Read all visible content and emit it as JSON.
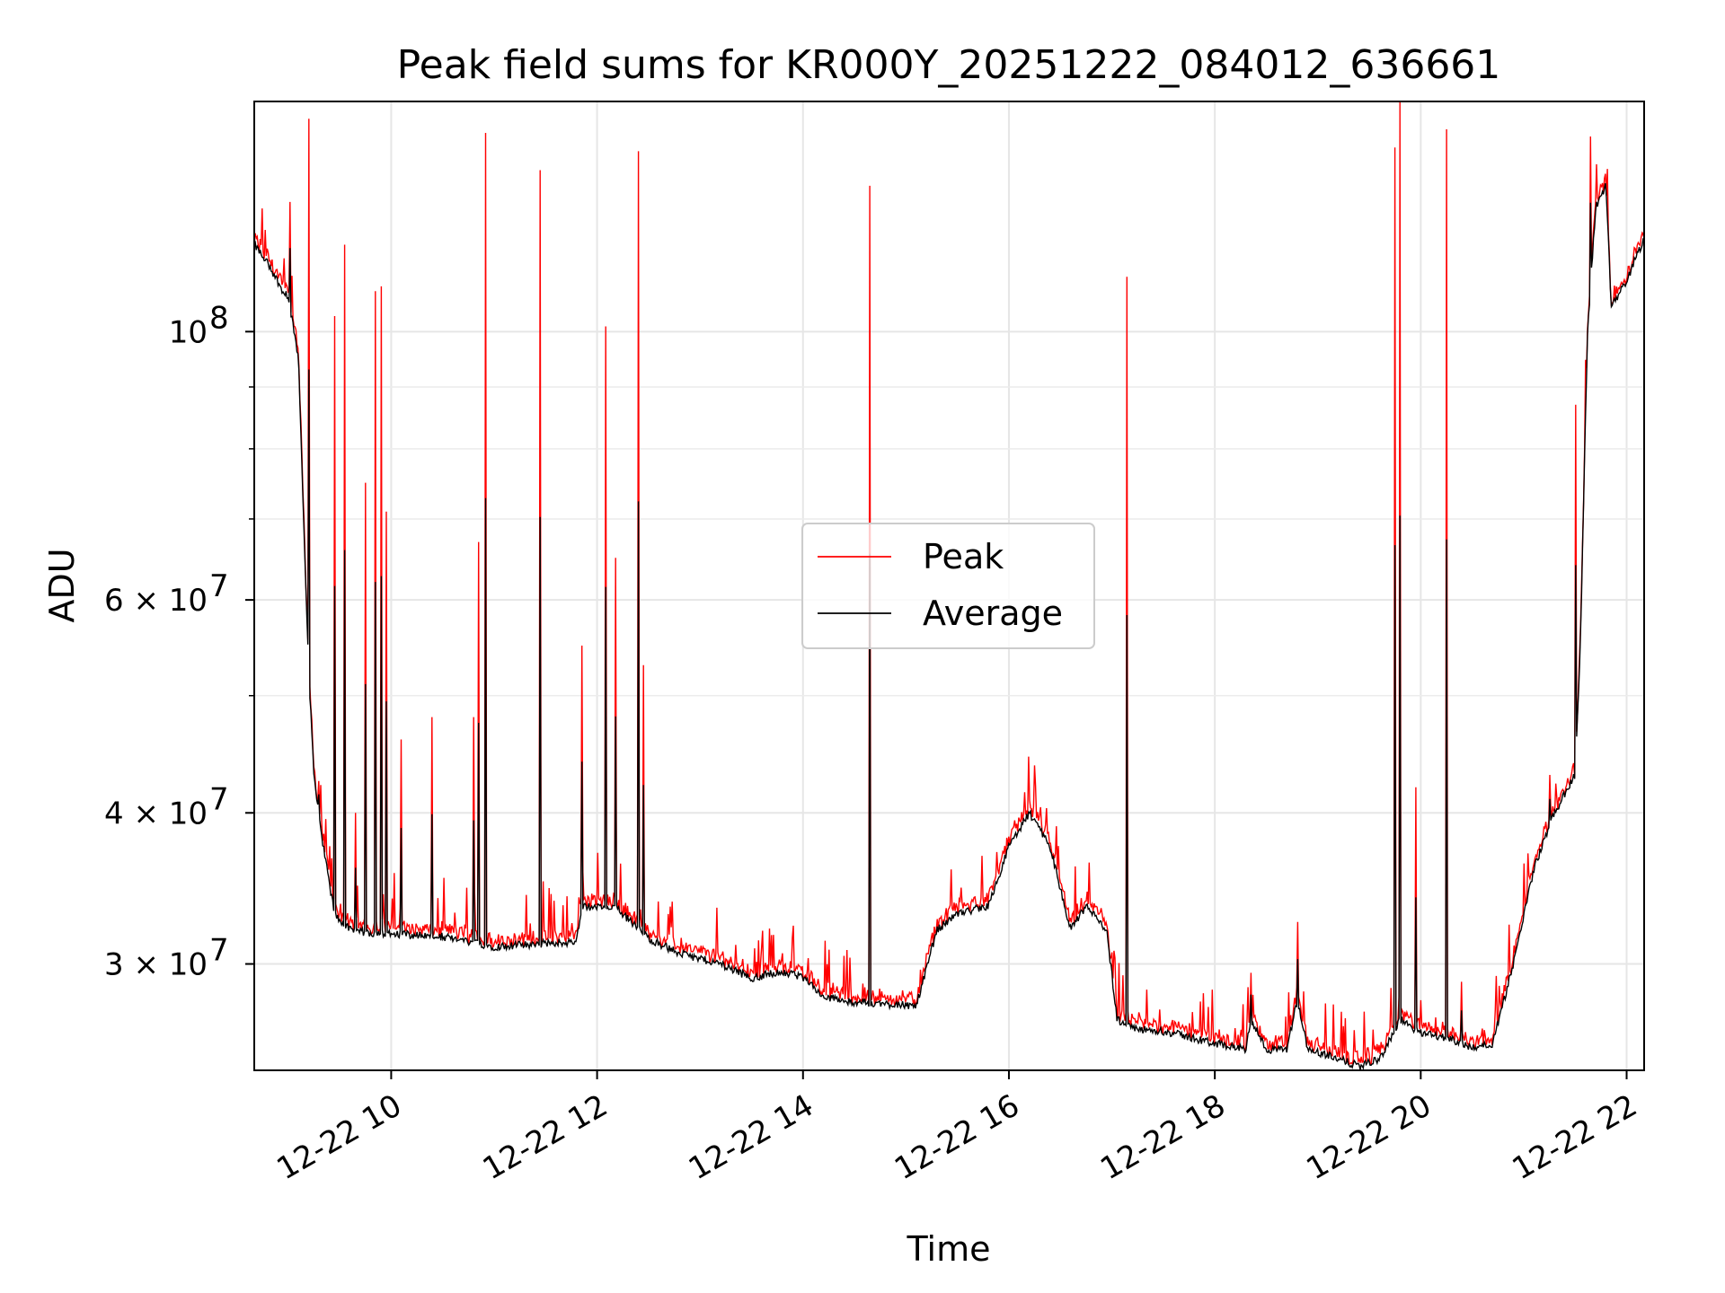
{
  "chart_data": {
    "type": "line",
    "title": "Peak field sums for KR000Y_20251222_084012_636661",
    "xlabel": "Time",
    "ylabel": "ADU",
    "yscale": "log",
    "grid": true,
    "legend_position": "center",
    "xlim_hours": [
      8.67,
      22.17
    ],
    "ylim": [
      24500000,
      155000000
    ],
    "x_ticks": [
      {
        "value": 10,
        "label": "12-22 10"
      },
      {
        "value": 12,
        "label": "12-22 12"
      },
      {
        "value": 14,
        "label": "12-22 14"
      },
      {
        "value": 16,
        "label": "12-22 16"
      },
      {
        "value": 18,
        "label": "12-22 18"
      },
      {
        "value": 20,
        "label": "12-22 20"
      },
      {
        "value": 22,
        "label": "12-22 22"
      }
    ],
    "y_major_ticks": [
      {
        "value": 30000000,
        "label": "3 × 10",
        "exp": "7"
      },
      {
        "value": 40000000,
        "label": "4 × 10",
        "exp": "7"
      },
      {
        "value": 60000000,
        "label": "6 × 10",
        "exp": "7"
      },
      {
        "value": 100000000,
        "label": "10",
        "exp": "8"
      }
    ],
    "y_minor_ticks": [
      50000000,
      70000000,
      80000000,
      90000000
    ],
    "baseline": [
      [
        8.67,
        118000000
      ],
      [
        8.8,
        114000000
      ],
      [
        8.95,
        108000000
      ],
      [
        9.0,
        107000000
      ],
      [
        9.1,
        95000000
      ],
      [
        9.15,
        70000000
      ],
      [
        9.2,
        52000000
      ],
      [
        9.25,
        43000000
      ],
      [
        9.35,
        37000000
      ],
      [
        9.45,
        33000000
      ],
      [
        9.6,
        32000000
      ],
      [
        9.8,
        31800000
      ],
      [
        10.0,
        31800000
      ],
      [
        10.5,
        31600000
      ],
      [
        11.0,
        31000000
      ],
      [
        11.5,
        31200000
      ],
      [
        11.8,
        31300000
      ],
      [
        11.85,
        33500000
      ],
      [
        12.2,
        33300000
      ],
      [
        12.5,
        31500000
      ],
      [
        12.8,
        30600000
      ],
      [
        13.2,
        30000000
      ],
      [
        13.5,
        29200000
      ],
      [
        13.8,
        29600000
      ],
      [
        14.0,
        29200000
      ],
      [
        14.2,
        28200000
      ],
      [
        14.5,
        27900000
      ],
      [
        14.8,
        27800000
      ],
      [
        15.1,
        27700000
      ],
      [
        15.3,
        32000000
      ],
      [
        15.5,
        33000000
      ],
      [
        15.8,
        33500000
      ],
      [
        16.0,
        37500000
      ],
      [
        16.2,
        40000000
      ],
      [
        16.4,
        37500000
      ],
      [
        16.6,
        32000000
      ],
      [
        16.75,
        33500000
      ],
      [
        16.95,
        32000000
      ],
      [
        17.05,
        27000000
      ],
      [
        17.2,
        26500000
      ],
      [
        17.5,
        26400000
      ],
      [
        18.0,
        25800000
      ],
      [
        18.3,
        25500000
      ],
      [
        18.35,
        27000000
      ],
      [
        18.5,
        25500000
      ],
      [
        18.7,
        25500000
      ],
      [
        18.8,
        28000000
      ],
      [
        18.9,
        25500000
      ],
      [
        19.1,
        25200000
      ],
      [
        19.4,
        24700000
      ],
      [
        19.6,
        25000000
      ],
      [
        19.75,
        26500000
      ],
      [
        19.8,
        27000000
      ],
      [
        20.0,
        26300000
      ],
      [
        20.3,
        26000000
      ],
      [
        20.5,
        25600000
      ],
      [
        20.7,
        25800000
      ],
      [
        20.9,
        30000000
      ],
      [
        21.1,
        36000000
      ],
      [
        21.3,
        40000000
      ],
      [
        21.5,
        43000000
      ],
      [
        21.55,
        55000000
      ],
      [
        21.62,
        100000000
      ],
      [
        21.7,
        127000000
      ],
      [
        21.8,
        132000000
      ],
      [
        21.85,
        105000000
      ],
      [
        22.0,
        110000000
      ],
      [
        22.1,
        116000000
      ],
      [
        22.17,
        119000000
      ]
    ],
    "spikes": [
      [
        9.02,
        128000000
      ],
      [
        9.2,
        150000000
      ],
      [
        9.3,
        42500000
      ],
      [
        9.45,
        103000000
      ],
      [
        9.55,
        118000000
      ],
      [
        9.65,
        40000000
      ],
      [
        9.75,
        75000000
      ],
      [
        9.85,
        108000000
      ],
      [
        9.9,
        109000000
      ],
      [
        9.95,
        71000000
      ],
      [
        10.1,
        46000000
      ],
      [
        10.4,
        48000000
      ],
      [
        10.8,
        48000000
      ],
      [
        10.85,
        67000000
      ],
      [
        10.92,
        146000000
      ],
      [
        11.45,
        136000000
      ],
      [
        11.85,
        55000000
      ],
      [
        12.08,
        101000000
      ],
      [
        12.18,
        65000000
      ],
      [
        12.4,
        141000000
      ],
      [
        12.45,
        53000000
      ],
      [
        14.65,
        132000000
      ],
      [
        17.15,
        111000000
      ],
      [
        18.35,
        29500000
      ],
      [
        18.8,
        32500000
      ],
      [
        19.75,
        142000000
      ],
      [
        19.8,
        155000000
      ],
      [
        19.95,
        42000000
      ],
      [
        20.25,
        147000000
      ],
      [
        20.4,
        29000000
      ],
      [
        21.25,
        43000000
      ],
      [
        21.5,
        87000000
      ],
      [
        21.65,
        145000000
      ]
    ],
    "series": [
      {
        "name": "Peak",
        "color": "#ff0000"
      },
      {
        "name": "Average",
        "color": "#000000"
      }
    ]
  }
}
